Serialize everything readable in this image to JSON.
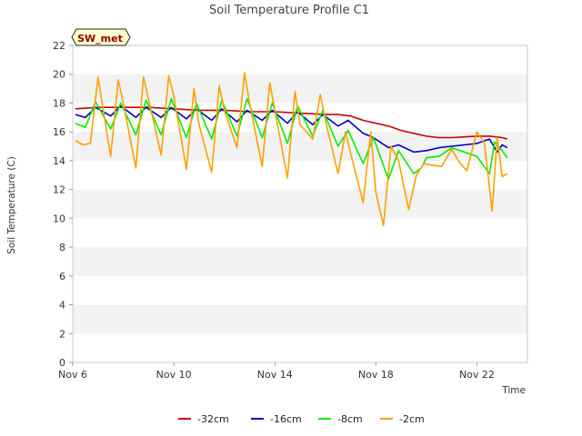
{
  "chart_data": {
    "type": "line",
    "title": "Soil Temperature Profile C1",
    "site_label": "SW_met",
    "xlabel": "Time",
    "ylabel": "Soil Temperature (C)",
    "xlim": [
      6,
      24.0
    ],
    "ylim": [
      0,
      22
    ],
    "x_ticks": [
      6,
      10,
      14,
      18,
      22
    ],
    "x_tick_labels": [
      "Nov 6",
      "Nov 10",
      "Nov 14",
      "Nov 18",
      "Nov 22"
    ],
    "y_ticks": [
      0,
      2,
      4,
      6,
      8,
      10,
      12,
      14,
      16,
      18,
      20,
      22
    ],
    "y_tick_labels": [
      "0",
      "2",
      "4",
      "6",
      "8",
      "10",
      "12",
      "14",
      "16",
      "18",
      "20",
      "22"
    ],
    "grid": "alternating horizontal bands",
    "legend_position": "bottom",
    "series": [
      {
        "name": "-32cm",
        "color": "#cc0000",
        "x": [
          6.1,
          7,
          8,
          9,
          10,
          11,
          12,
          13,
          14,
          15,
          16,
          16.5,
          17,
          17.5,
          18,
          18.5,
          19,
          19.5,
          20,
          20.5,
          21,
          22,
          22.5,
          23,
          23.2
        ],
        "y": [
          17.6,
          17.7,
          17.7,
          17.7,
          17.6,
          17.5,
          17.5,
          17.4,
          17.4,
          17.3,
          17.2,
          17.2,
          17.1,
          16.8,
          16.6,
          16.4,
          16.1,
          15.9,
          15.7,
          15.6,
          15.6,
          15.7,
          15.7,
          15.6,
          15.5
        ]
      },
      {
        "name": "-16cm",
        "color": "#0000cc",
        "x": [
          6.1,
          6.5,
          6.9,
          7.5,
          7.9,
          8.5,
          8.9,
          9.5,
          9.9,
          10.5,
          10.9,
          11.5,
          11.9,
          12.5,
          12.9,
          13.5,
          13.9,
          14.5,
          14.9,
          15.5,
          15.9,
          16.5,
          16.9,
          17.5,
          17.9,
          18.5,
          18.9,
          19.5,
          20,
          20.5,
          21,
          21.5,
          22,
          22.5,
          22.8,
          23,
          23.2
        ],
        "y": [
          17.2,
          17.0,
          17.7,
          17.1,
          17.8,
          17.0,
          17.7,
          17.0,
          17.7,
          16.9,
          17.6,
          16.8,
          17.6,
          16.7,
          17.5,
          16.8,
          17.5,
          16.6,
          17.4,
          16.5,
          17.2,
          16.4,
          16.8,
          15.9,
          15.6,
          14.9,
          15.1,
          14.6,
          14.7,
          14.9,
          15.0,
          15.1,
          15.2,
          15.5,
          14.6,
          15.1,
          14.9
        ]
      },
      {
        "name": "-8cm",
        "color": "#00ee00",
        "x": [
          6.1,
          6.5,
          6.9,
          7.5,
          7.9,
          8.5,
          8.9,
          9.5,
          9.9,
          10.5,
          10.9,
          11.5,
          11.9,
          12.5,
          12.9,
          13.5,
          13.9,
          14.5,
          14.9,
          15.5,
          15.9,
          16.5,
          16.9,
          17.5,
          17.9,
          18.5,
          18.9,
          19.5,
          19.8,
          20,
          20.5,
          21,
          21.5,
          22,
          22.5,
          22.7,
          23,
          23.2
        ],
        "y": [
          16.6,
          16.3,
          18.1,
          16.2,
          18.0,
          15.8,
          18.2,
          15.8,
          18.3,
          15.6,
          18.0,
          15.5,
          18.2,
          15.7,
          18.3,
          15.6,
          18.0,
          15.2,
          17.8,
          15.7,
          17.5,
          15.0,
          16.1,
          13.8,
          15.6,
          12.7,
          14.7,
          13.1,
          13.5,
          14.2,
          14.3,
          14.9,
          14.6,
          14.3,
          13.1,
          15.3,
          14.7,
          14.2
        ]
      },
      {
        "name": "-2cm",
        "color": "#ffa000",
        "x": [
          6.1,
          6.4,
          6.7,
          7.0,
          7.5,
          7.8,
          8.0,
          8.5,
          8.8,
          9.1,
          9.5,
          9.8,
          10.0,
          10.5,
          10.8,
          11.0,
          11.5,
          11.8,
          12.0,
          12.5,
          12.8,
          13.0,
          13.5,
          13.8,
          14.0,
          14.5,
          14.8,
          15.0,
          15.5,
          15.8,
          16.0,
          16.5,
          16.8,
          17.0,
          17.5,
          17.8,
          18.0,
          18.3,
          18.6,
          18.9,
          19.3,
          19.6,
          19.9,
          20.2,
          20.6,
          21.0,
          21.3,
          21.6,
          22.0,
          22.3,
          22.6,
          22.8,
          23.0,
          23.2
        ],
        "y": [
          15.4,
          15.1,
          15.2,
          19.8,
          14.3,
          19.6,
          18.0,
          13.5,
          19.8,
          17.5,
          14.4,
          19.9,
          18.5,
          13.4,
          19.0,
          16.5,
          13.2,
          19.2,
          17.5,
          14.9,
          20.1,
          18.0,
          13.6,
          19.4,
          17.5,
          12.8,
          18.8,
          16.5,
          15.5,
          18.6,
          16.8,
          13.1,
          16.0,
          14.5,
          11.1,
          16.0,
          11.8,
          9.5,
          15.0,
          14.0,
          10.6,
          13.0,
          13.8,
          13.7,
          13.6,
          14.8,
          13.9,
          13.3,
          16.0,
          15.2,
          10.5,
          15.6,
          12.9,
          13.1
        ]
      }
    ]
  }
}
